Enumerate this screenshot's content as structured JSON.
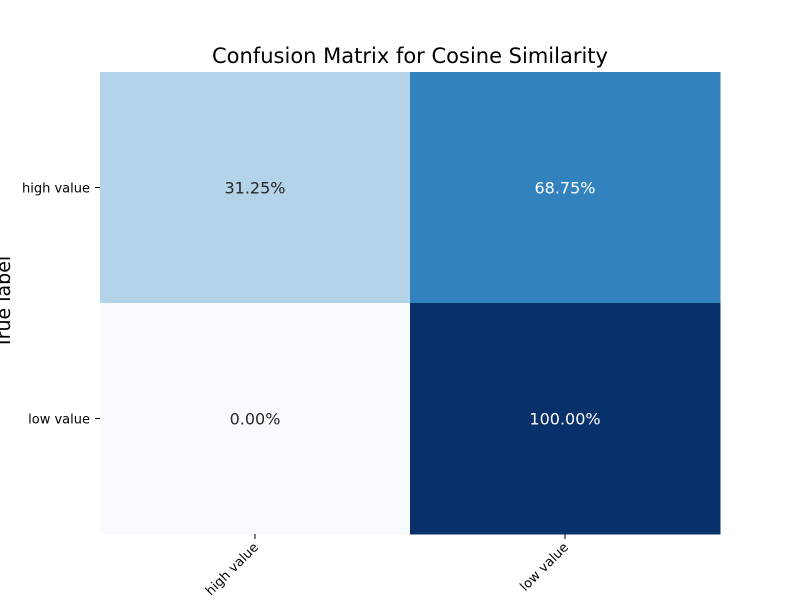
{
  "chart_data": {
    "type": "heatmap",
    "title": "Confusion Matrix for Cosine Similarity",
    "xlabel": "",
    "ylabel": "True label",
    "row_labels": [
      "high value",
      "low value"
    ],
    "col_labels": [
      "high value",
      "low value"
    ],
    "values": [
      [
        31.25,
        68.75
      ],
      [
        0.0,
        100.0
      ]
    ],
    "cell_text": [
      [
        "31.25%",
        "68.75%"
      ],
      [
        "0.00%",
        "100.00%"
      ]
    ],
    "value_range": [
      0,
      100
    ],
    "colormap": "Blues",
    "colors": {
      "low": "#f7fbff",
      "high": "#08306b",
      "text_on_light": "#262626",
      "text_on_dark": "#ffffff"
    }
  }
}
